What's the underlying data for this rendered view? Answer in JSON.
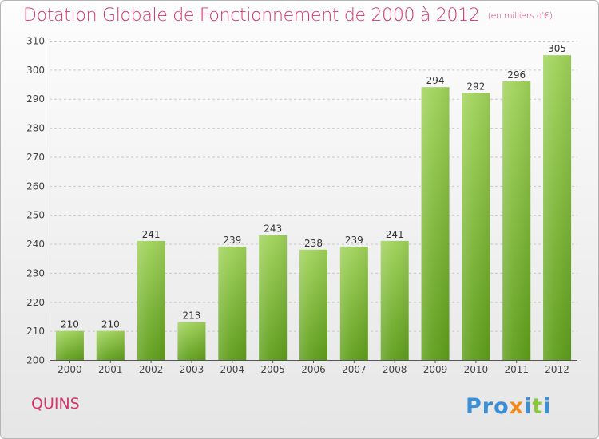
{
  "header": {
    "title": "Dotation Globale de Fonctionnement de 2000 à 2012",
    "subtitle": "(en milliers d'€)"
  },
  "footer": {
    "commune": "QUINS",
    "brand": "Proxiti"
  },
  "colors": {
    "title": "#d6336c",
    "bar_top": "#a0d25a",
    "bar_bottom": "#5e9e1a",
    "grid": "#c8c8c8",
    "axis": "#555555"
  },
  "chart_data": {
    "type": "bar",
    "title": "Dotation Globale de Fonctionnement de 2000 à 2012",
    "subtitle": "(en milliers d'€)",
    "xlabel": "",
    "ylabel": "",
    "categories": [
      "2000",
      "2001",
      "2002",
      "2003",
      "2004",
      "2005",
      "2006",
      "2007",
      "2008",
      "2009",
      "2010",
      "2011",
      "2012"
    ],
    "values": [
      210,
      210,
      241,
      213,
      239,
      243,
      238,
      239,
      241,
      294,
      292,
      296,
      305
    ],
    "ylim": [
      200,
      310
    ],
    "yticks": [
      200,
      210,
      220,
      230,
      240,
      250,
      260,
      270,
      280,
      290,
      300,
      310
    ],
    "grid": true,
    "data_labels": true
  }
}
